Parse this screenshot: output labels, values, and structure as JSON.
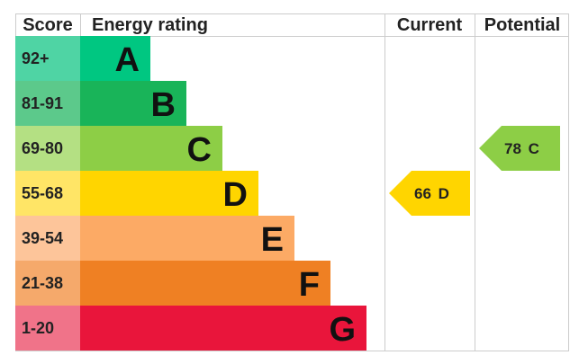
{
  "header": {
    "score": "Score",
    "rating": "Energy rating",
    "current": "Current",
    "potential": "Potential"
  },
  "bands": [
    {
      "score": "92+",
      "letter": "A"
    },
    {
      "score": "81-91",
      "letter": "B"
    },
    {
      "score": "69-80",
      "letter": "C"
    },
    {
      "score": "55-68",
      "letter": "D"
    },
    {
      "score": "39-54",
      "letter": "E"
    },
    {
      "score": "21-38",
      "letter": "F"
    },
    {
      "score": "1-20",
      "letter": "G"
    }
  ],
  "current": {
    "value": 66,
    "letter": "D"
  },
  "potential": {
    "value": 78,
    "letter": "C"
  }
}
